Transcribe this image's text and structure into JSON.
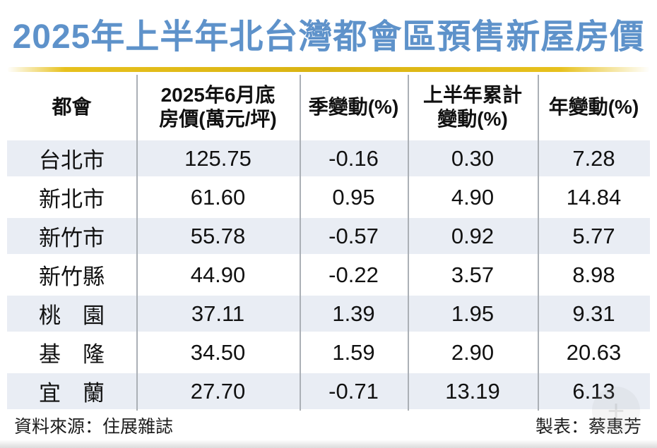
{
  "title": "2025年上半年北台灣都會區預售新屋房價",
  "table": {
    "columns": {
      "metro": "都會",
      "price_line1": "2025年6月底",
      "price_line2": "房價(萬元/坪)",
      "quarter": "季變動(%)",
      "half_line1": "上半年累計",
      "half_line2": "變動(%)",
      "annual": "年變動(%)"
    },
    "rows": [
      {
        "name": "台北市",
        "price": "125.75",
        "quarter": "-0.16",
        "half": "0.30",
        "annual": "7.28"
      },
      {
        "name": "新北市",
        "price": "61.60",
        "quarter": "0.95",
        "half": "4.90",
        "annual": "14.84"
      },
      {
        "name": "新竹市",
        "price": "55.78",
        "quarter": "-0.57",
        "half": "0.92",
        "annual": "5.77"
      },
      {
        "name": "新竹縣",
        "price": "44.90",
        "quarter": "-0.22",
        "half": "3.57",
        "annual": "8.98"
      },
      {
        "name": "桃　園",
        "price": "37.11",
        "quarter": "1.39",
        "half": "1.95",
        "annual": "9.31"
      },
      {
        "name": "基　隆",
        "price": "34.50",
        "quarter": "1.59",
        "half": "2.90",
        "annual": "20.63"
      },
      {
        "name": "宜　蘭",
        "price": "27.70",
        "quarter": "-0.71",
        "half": "13.19",
        "annual": "6.13"
      }
    ]
  },
  "footer": {
    "source": "資料來源：住展雜誌",
    "credit": "製表：蔡惠芳"
  },
  "watermark_glyph": "+",
  "colors": {
    "title_blue": "#5e92ca",
    "gold_line": "#e3bc17",
    "row_shade": "#e9edf4",
    "divider_gray": "#abb0b6"
  },
  "chart_data": {
    "type": "table",
    "title": "2025年上半年北台灣都會區預售新屋房價",
    "columns": [
      "都會",
      "2025年6月底房價(萬元/坪)",
      "季變動(%)",
      "上半年累計變動(%)",
      "年變動(%)"
    ],
    "rows": [
      [
        "台北市",
        125.75,
        -0.16,
        0.3,
        7.28
      ],
      [
        "新北市",
        61.6,
        0.95,
        4.9,
        14.84
      ],
      [
        "新竹市",
        55.78,
        -0.57,
        0.92,
        5.77
      ],
      [
        "新竹縣",
        44.9,
        -0.22,
        3.57,
        8.98
      ],
      [
        "桃園",
        37.11,
        1.39,
        1.95,
        9.31
      ],
      [
        "基隆",
        34.5,
        1.59,
        2.9,
        20.63
      ],
      [
        "宜蘭",
        27.7,
        -0.71,
        13.19,
        6.13
      ]
    ],
    "source": "住展雜誌",
    "creator": "蔡惠芳"
  }
}
